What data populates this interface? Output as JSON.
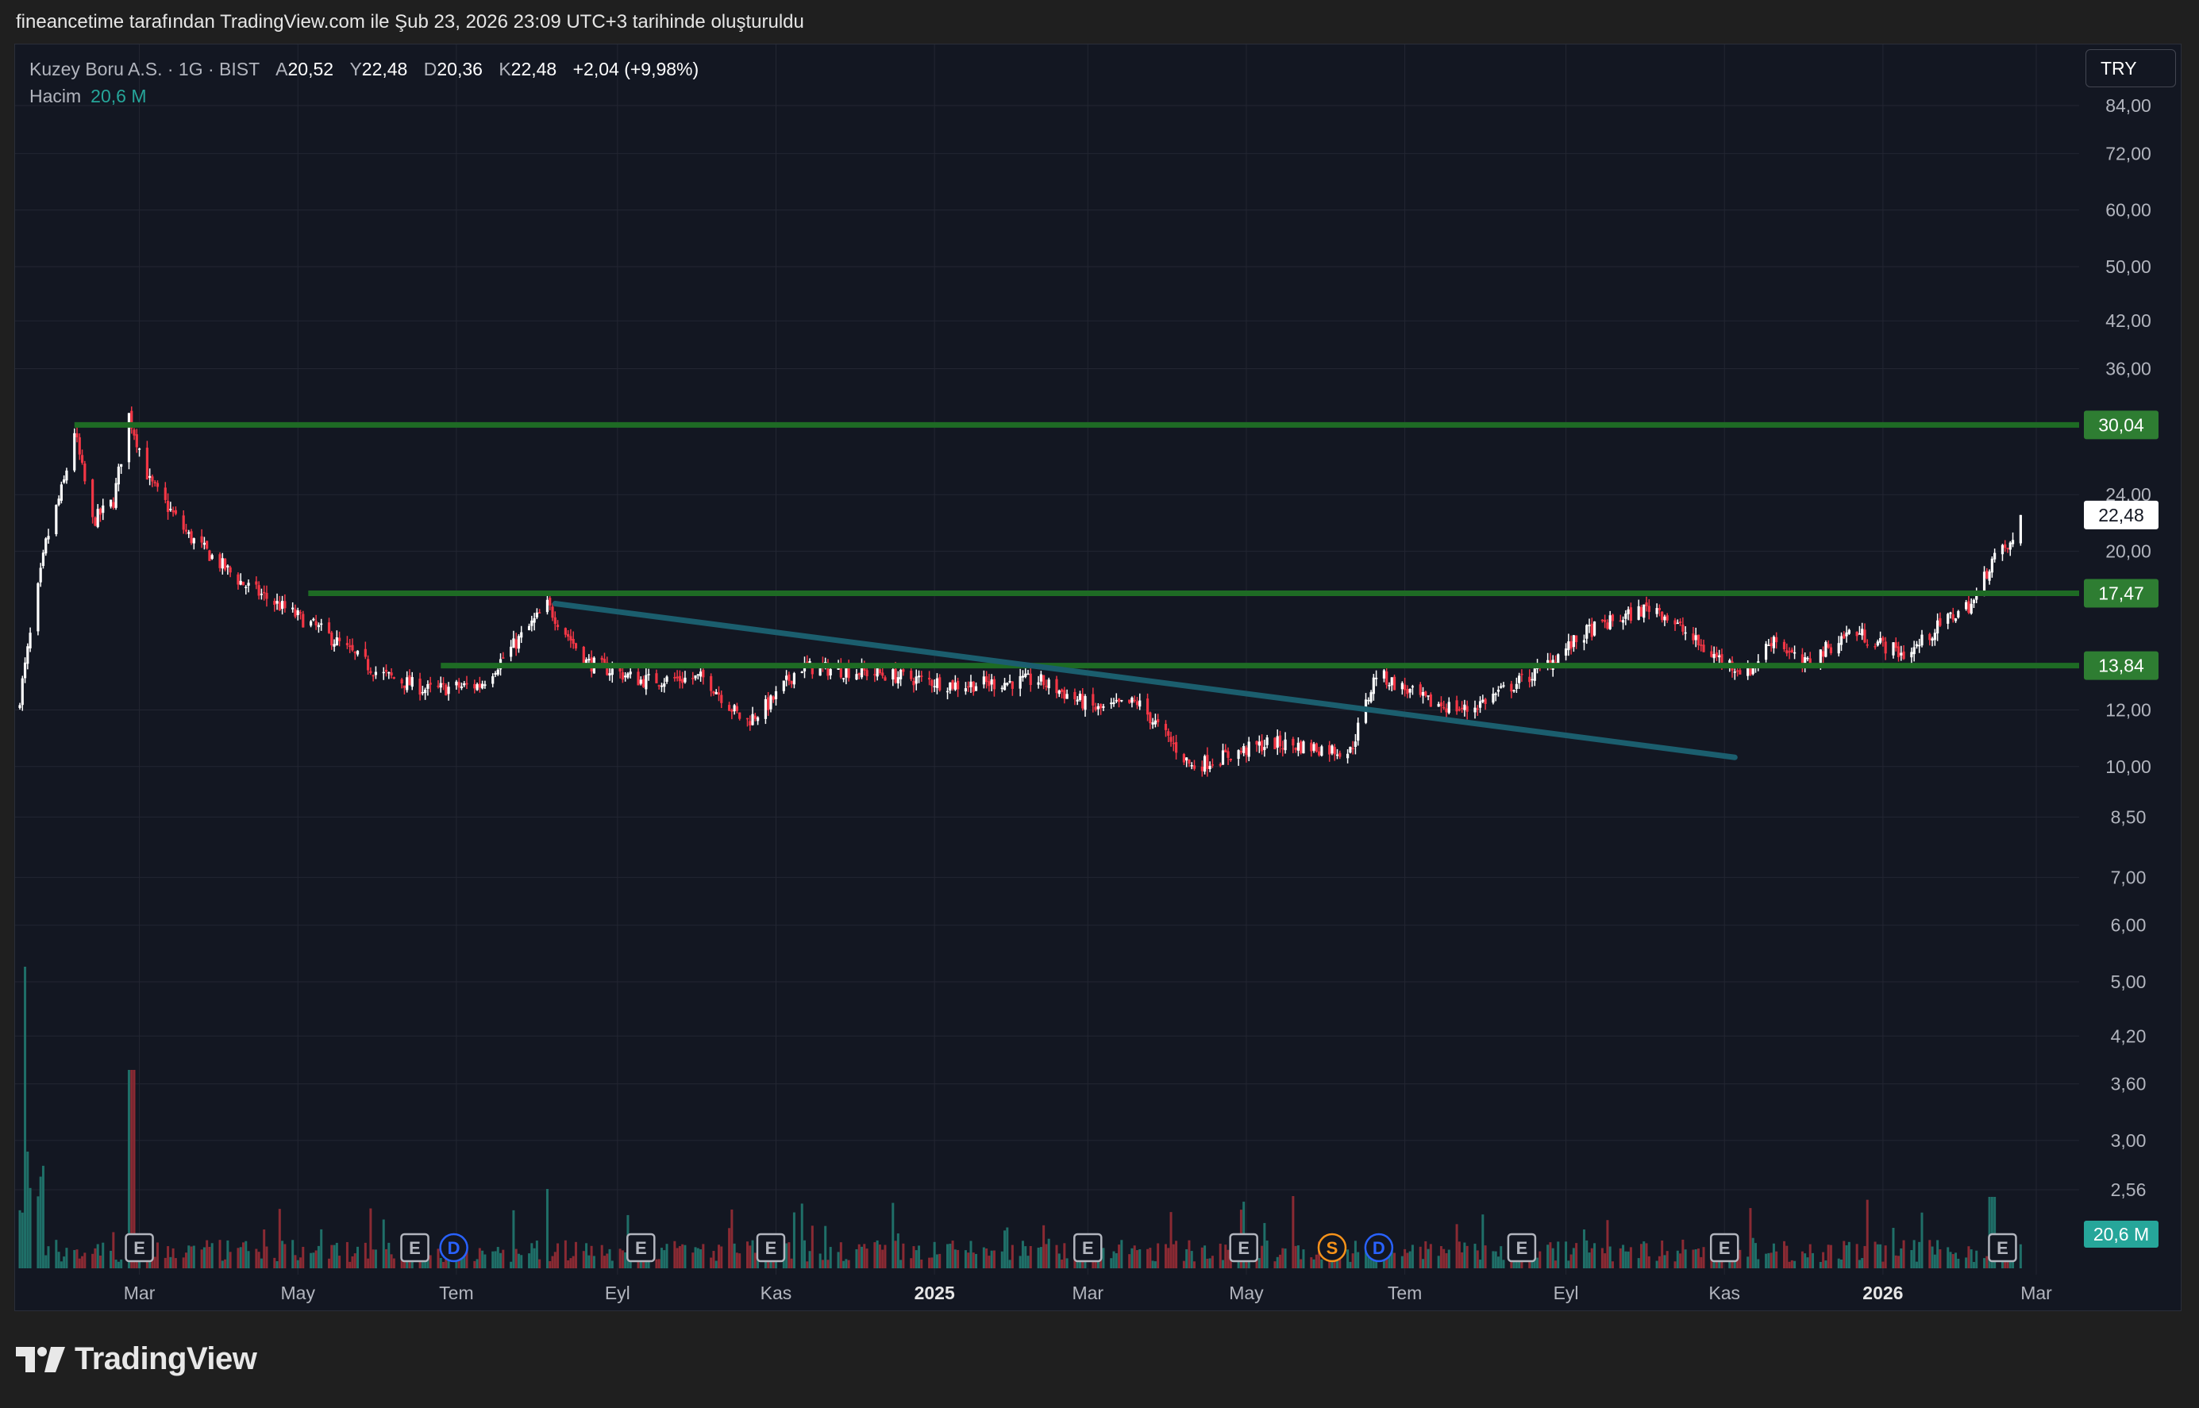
{
  "header": {
    "caption": "fineancetime tarafından TradingView.com ile Şub 23, 2026 23:09 UTC+3 tarihinde oluşturuldu"
  },
  "legend": {
    "symbol": "Kuzey Boru A.S. · 1G · BIST",
    "open_label": "A",
    "open": "20,52",
    "high_label": "Y",
    "high": "22,48",
    "low_label": "D",
    "low": "20,36",
    "close_label": "K",
    "close": "22,48",
    "change": "+2,04 (+9,98%)",
    "volume_label": "Hacim",
    "volume": "20,6 M"
  },
  "currency_button": "TRY",
  "branding": "TradingView",
  "colors": {
    "up": "#ffffff",
    "down": "#f23645",
    "level": "#1e6b24",
    "level_label": "#2e7d32",
    "trend": "#1b5e6e",
    "volume_up": "#1f6f68",
    "volume_down": "#8a2a33",
    "volume_badge": "#26a69a"
  },
  "chart_data": {
    "type": "candlestick",
    "scale": "log",
    "ylim": [
      2.2,
      100
    ],
    "y_ticks": [
      "84,00",
      "72,00",
      "60,00",
      "50,00",
      "42,00",
      "36,00",
      "24,00",
      "20,00",
      "12,00",
      "10,00",
      "8,50",
      "7,00",
      "6,00",
      "5,00",
      "4,20",
      "3,60",
      "3,00",
      "2,56"
    ],
    "y_tick_values": [
      84,
      72,
      60,
      50,
      42,
      36,
      24,
      20,
      12,
      10,
      8.5,
      7,
      6,
      5,
      4.2,
      3.6,
      3,
      2.56
    ],
    "x_ticks": [
      {
        "label": "Mar",
        "date": "2024-03-01",
        "bold": false
      },
      {
        "label": "May",
        "date": "2024-05-01",
        "bold": false
      },
      {
        "label": "Tem",
        "date": "2024-07-01",
        "bold": false
      },
      {
        "label": "Eyl",
        "date": "2024-09-01",
        "bold": false
      },
      {
        "label": "Kas",
        "date": "2024-11-01",
        "bold": false
      },
      {
        "label": "2025",
        "date": "2025-01-01",
        "bold": true
      },
      {
        "label": "Mar",
        "date": "2025-03-01",
        "bold": false
      },
      {
        "label": "May",
        "date": "2025-05-01",
        "bold": false
      },
      {
        "label": "Tem",
        "date": "2025-07-01",
        "bold": false
      },
      {
        "label": "Eyl",
        "date": "2025-09-01",
        "bold": false
      },
      {
        "label": "Kas",
        "date": "2025-11-01",
        "bold": false
      },
      {
        "label": "2026",
        "date": "2026-01-01",
        "bold": true
      },
      {
        "label": "Mar",
        "date": "2026-03-01",
        "bold": false
      }
    ],
    "price_path": [
      {
        "date": "2024-01-15",
        "close": 12.5
      },
      {
        "date": "2024-01-25",
        "close": 20.5
      },
      {
        "date": "2024-02-01",
        "close": 25.0
      },
      {
        "date": "2024-02-05",
        "close": 29.5
      },
      {
        "date": "2024-02-12",
        "close": 22.0
      },
      {
        "date": "2024-02-20",
        "close": 23.5
      },
      {
        "date": "2024-02-26",
        "close": 31.0
      },
      {
        "date": "2024-03-05",
        "close": 25.0
      },
      {
        "date": "2024-03-20",
        "close": 21.0
      },
      {
        "date": "2024-04-10",
        "close": 18.0
      },
      {
        "date": "2024-05-10",
        "close": 15.5
      },
      {
        "date": "2024-06-01",
        "close": 13.5
      },
      {
        "date": "2024-06-20",
        "close": 12.8
      },
      {
        "date": "2024-07-10",
        "close": 13.0
      },
      {
        "date": "2024-07-28",
        "close": 15.5
      },
      {
        "date": "2024-08-05",
        "close": 16.8
      },
      {
        "date": "2024-08-20",
        "close": 14.0
      },
      {
        "date": "2024-09-10",
        "close": 13.2
      },
      {
        "date": "2024-10-05",
        "close": 13.3
      },
      {
        "date": "2024-10-20",
        "close": 11.5
      },
      {
        "date": "2024-10-30",
        "close": 12.3
      },
      {
        "date": "2024-11-10",
        "close": 13.8
      },
      {
        "date": "2024-12-10",
        "close": 13.5
      },
      {
        "date": "2025-01-10",
        "close": 13.0
      },
      {
        "date": "2025-02-10",
        "close": 13.2
      },
      {
        "date": "2025-03-05",
        "close": 12.0
      },
      {
        "date": "2025-03-20",
        "close": 12.3
      },
      {
        "date": "2025-04-10",
        "close": 10.0
      },
      {
        "date": "2025-05-10",
        "close": 10.8
      },
      {
        "date": "2025-06-10",
        "close": 10.5
      },
      {
        "date": "2025-06-20",
        "close": 13.5
      },
      {
        "date": "2025-07-10",
        "close": 12.3
      },
      {
        "date": "2025-07-25",
        "close": 12.0
      },
      {
        "date": "2025-08-20",
        "close": 13.5
      },
      {
        "date": "2025-09-10",
        "close": 15.5
      },
      {
        "date": "2025-10-05",
        "close": 16.8
      },
      {
        "date": "2025-10-25",
        "close": 14.5
      },
      {
        "date": "2025-11-10",
        "close": 13.5
      },
      {
        "date": "2025-11-20",
        "close": 15.2
      },
      {
        "date": "2025-12-01",
        "close": 13.8
      },
      {
        "date": "2025-12-20",
        "close": 15.5
      },
      {
        "date": "2026-01-10",
        "close": 14.3
      },
      {
        "date": "2026-01-25",
        "close": 16.0
      },
      {
        "date": "2026-02-05",
        "close": 17.0
      },
      {
        "date": "2026-02-12",
        "close": 19.5
      },
      {
        "date": "2026-02-20",
        "close": 20.5
      },
      {
        "date": "2026-02-23",
        "close": 22.48
      }
    ],
    "levels": [
      {
        "label": "30,04",
        "value": 30.04,
        "from": "2024-02-05"
      },
      {
        "label": "17,47",
        "value": 17.47,
        "from": "2024-05-05"
      },
      {
        "label": "13,84",
        "value": 13.84,
        "from": "2024-06-25"
      }
    ],
    "trendline": {
      "from": {
        "date": "2024-08-08",
        "value": 16.9
      },
      "to": {
        "date": "2025-11-05",
        "value": 10.3
      }
    },
    "last_price_label": "22,48",
    "volume_badge": "20,6 M",
    "event_markers": [
      {
        "label": "E",
        "date": "2024-03-01",
        "color": "#b2b5be"
      },
      {
        "label": "E",
        "date": "2024-06-15",
        "color": "#b2b5be"
      },
      {
        "label": "D",
        "date": "2024-06-30",
        "color": "#2962ff"
      },
      {
        "label": "E",
        "date": "2024-09-10",
        "color": "#b2b5be"
      },
      {
        "label": "E",
        "date": "2024-10-30",
        "color": "#b2b5be"
      },
      {
        "label": "E",
        "date": "2025-03-01",
        "color": "#b2b5be"
      },
      {
        "label": "E",
        "date": "2025-04-30",
        "color": "#b2b5be"
      },
      {
        "label": "S",
        "date": "2025-06-03",
        "color": "#f7931a"
      },
      {
        "label": "D",
        "date": "2025-06-21",
        "color": "#2962ff"
      },
      {
        "label": "E",
        "date": "2025-08-15",
        "color": "#b2b5be"
      },
      {
        "label": "E",
        "date": "2025-11-01",
        "color": "#b2b5be"
      },
      {
        "label": "E",
        "date": "2026-02-16",
        "color": "#b2b5be"
      }
    ]
  }
}
